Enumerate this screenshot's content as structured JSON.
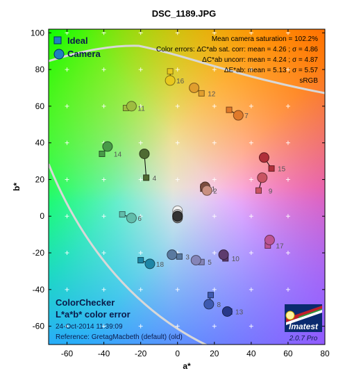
{
  "chart_data": {
    "type": "scatter",
    "title": "DSC_1189.JPG",
    "xlabel": "a*",
    "ylabel": "b*",
    "xlim": [
      -70,
      80
    ],
    "ylim": [
      -70,
      102
    ],
    "xticks": [
      -60,
      -40,
      -20,
      0,
      20,
      40,
      60,
      80
    ],
    "yticks": [
      -60,
      -40,
      -20,
      0,
      20,
      40,
      60,
      80,
      100
    ],
    "grid": "plus-marks",
    "legend": {
      "position": "top-left",
      "entries": [
        {
          "name": "Ideal",
          "marker": "square",
          "color": "#1f7fbf"
        },
        {
          "name": "Camera",
          "marker": "circle",
          "color": "#1f7fbf"
        }
      ]
    },
    "stats": [
      "Mean camera saturation = 102.2%",
      "Color errors:  ΔC*ab sat. corr:  mean = 4.26 ;  σ = 4.86",
      "ΔC*ab uncorr:  mean = 4.24 ;  σ = 4.87",
      "ΔE*ab:  mean = 5.13 ;  σ = 5.57",
      "sRGB"
    ],
    "bottom_text": {
      "line1": "ColorChecker",
      "line2": "L*a*b* color error",
      "date": "24-Oct-2014 11:39:09",
      "reference": "Reference: GretagMacbeth (default) (old)"
    },
    "logo": {
      "name": "Imatest",
      "version": "2.0.7  Pro"
    },
    "patches": [
      {
        "id": "1",
        "ideal": [
          14,
          15
        ],
        "camera": [
          15,
          16
        ],
        "color": "#7b4c3e"
      },
      {
        "id": "2",
        "ideal": [
          14,
          16
        ],
        "camera": [
          16,
          14
        ],
        "color": "#c99080"
      },
      {
        "id": "3",
        "ideal": [
          1,
          -22
        ],
        "camera": [
          -3,
          -21
        ],
        "color": "#5a7aa0"
      },
      {
        "id": "4",
        "ideal": [
          -17,
          21
        ],
        "camera": [
          -18,
          34
        ],
        "color": "#4f6a32"
      },
      {
        "id": "5",
        "ideal": [
          13,
          -25
        ],
        "camera": [
          10,
          -24
        ],
        "color": "#8585b8"
      },
      {
        "id": "6",
        "ideal": [
          -30,
          1
        ],
        "camera": [
          -25,
          -1
        ],
        "color": "#62bcaa"
      },
      {
        "id": "7",
        "ideal": [
          28,
          58
        ],
        "camera": [
          33,
          55
        ],
        "color": "#e07a2a"
      },
      {
        "id": "8",
        "ideal": [
          18,
          -43
        ],
        "camera": [
          17,
          -48
        ],
        "color": "#3e5ab0"
      },
      {
        "id": "9",
        "ideal": [
          44,
          14
        ],
        "camera": [
          46,
          21
        ],
        "color": "#c85462"
      },
      {
        "id": "10",
        "ideal": [
          26,
          -23
        ],
        "camera": [
          25,
          -21
        ],
        "color": "#5e3c6e"
      },
      {
        "id": "11",
        "ideal": [
          -28,
          59
        ],
        "camera": [
          -25,
          60
        ],
        "color": "#9ebc40"
      },
      {
        "id": "12",
        "ideal": [
          13,
          67
        ],
        "camera": [
          9,
          70
        ],
        "color": "#e09e2e"
      },
      {
        "id": "13",
        "ideal": [
          28,
          -52
        ],
        "camera": [
          27,
          -52
        ],
        "color": "#28388a"
      },
      {
        "id": "14",
        "ideal": [
          -41,
          34
        ],
        "camera": [
          -38,
          38
        ],
        "color": "#489a48"
      },
      {
        "id": "15",
        "ideal": [
          51,
          26
        ],
        "camera": [
          47,
          32
        ],
        "color": "#b0303a"
      },
      {
        "id": "16",
        "ideal": [
          -4,
          79
        ],
        "camera": [
          -4,
          74
        ],
        "color": "#e8c81e"
      },
      {
        "id": "17",
        "ideal": [
          49,
          -16
        ],
        "camera": [
          50,
          -13
        ],
        "color": "#bc5494"
      },
      {
        "id": "18",
        "ideal": [
          -20,
          -24
        ],
        "camera": [
          -15,
          -26
        ],
        "color": "#1e86a6"
      },
      {
        "id": "19",
        "ideal": [
          0,
          0
        ],
        "camera": [
          0,
          3
        ],
        "color": "#f2f2f2"
      },
      {
        "id": "20",
        "ideal": [
          0,
          0
        ],
        "camera": [
          0,
          1
        ],
        "color": "#c8c8c8"
      },
      {
        "id": "21",
        "ideal": [
          0,
          0
        ],
        "camera": [
          0,
          0
        ],
        "color": "#a0a0a0"
      },
      {
        "id": "22",
        "ideal": [
          0,
          0
        ],
        "camera": [
          0,
          -1
        ],
        "color": "#7a7a7a"
      },
      {
        "id": "23",
        "ideal": [
          0,
          0
        ],
        "camera": [
          0,
          0
        ],
        "color": "#555555"
      },
      {
        "id": "24",
        "ideal": [
          0,
          0
        ],
        "camera": [
          0,
          0
        ],
        "color": "#333333"
      }
    ]
  }
}
